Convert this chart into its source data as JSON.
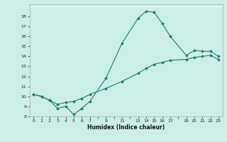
{
  "title": "",
  "xlabel": "Humidex (Indice chaleur)",
  "ylabel": "",
  "background_color": "#cceee8",
  "grid_color": "#ffffff",
  "line_color": "#1a7a6e",
  "xlim": [
    -0.5,
    23.5
  ],
  "ylim": [
    8,
    19
  ],
  "xtick_positions": [
    0,
    1,
    2,
    3,
    4,
    5,
    6,
    7,
    9,
    11,
    13,
    14,
    15,
    16,
    17,
    19,
    20,
    21,
    22,
    23
  ],
  "xtick_labels": [
    "0",
    "1",
    "2",
    "3",
    "4",
    "5",
    "6",
    "7",
    "9",
    "11",
    "1314151617",
    "",
    "",
    "",
    "",
    "1920212223",
    "",
    "",
    "",
    ""
  ],
  "ytick_positions": [
    8,
    9,
    10,
    11,
    12,
    13,
    14,
    15,
    16,
    17,
    18
  ],
  "ytick_labels": [
    "8",
    "9",
    "10",
    "11",
    "12",
    "13",
    "14",
    "15",
    "16",
    "17",
    "18"
  ],
  "line1_x": [
    0,
    1,
    2,
    3,
    4,
    5,
    6,
    7,
    9,
    11,
    13,
    14,
    15,
    16,
    17,
    19,
    20,
    21,
    22,
    23
  ],
  "line1_y": [
    10.2,
    10.0,
    9.6,
    8.8,
    9.0,
    8.2,
    8.8,
    9.5,
    11.8,
    15.3,
    17.8,
    18.5,
    18.4,
    17.3,
    16.0,
    14.1,
    14.6,
    14.5,
    14.5,
    14.0
  ],
  "line2_x": [
    0,
    1,
    2,
    3,
    4,
    5,
    6,
    7,
    9,
    11,
    13,
    14,
    15,
    16,
    17,
    19,
    20,
    21,
    22,
    23
  ],
  "line2_y": [
    10.2,
    10.0,
    9.6,
    9.2,
    9.4,
    9.5,
    9.8,
    10.2,
    10.8,
    11.5,
    12.3,
    12.8,
    13.2,
    13.4,
    13.6,
    13.7,
    13.9,
    14.0,
    14.1,
    13.7
  ]
}
